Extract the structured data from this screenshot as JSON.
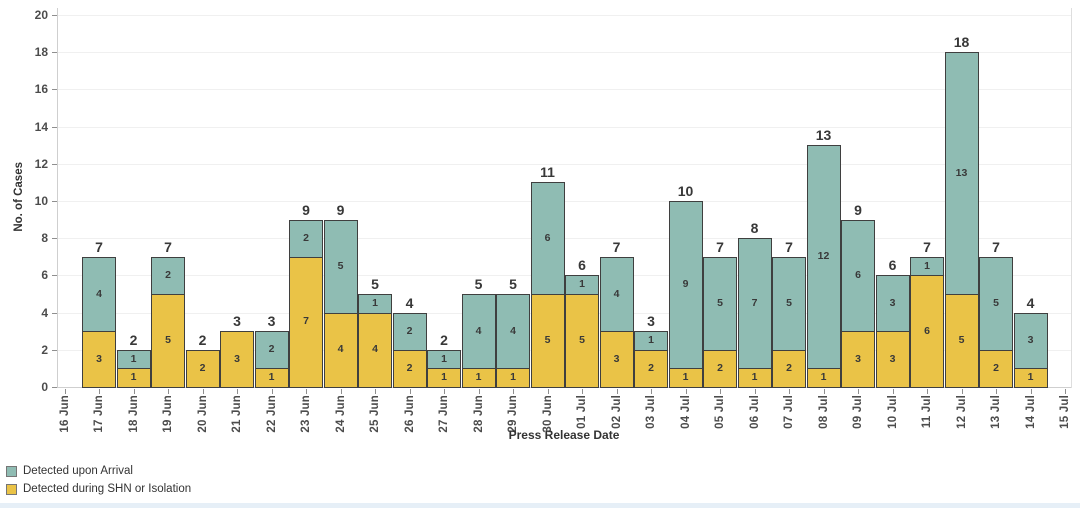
{
  "chart_data": {
    "type": "bar",
    "stacked": true,
    "title": "",
    "xlabel": "Press Release Date",
    "ylabel": "No. of Cases",
    "ylim": [
      0,
      20
    ],
    "ytick_step": 2,
    "grid": true,
    "legend_position": "bottom-left",
    "categories": [
      "16 Jun",
      "17 Jun",
      "18 Jun",
      "19 Jun",
      "20 Jun",
      "21 Jun",
      "22 Jun",
      "23 Jun",
      "24 Jun",
      "25 Jun",
      "26 Jun",
      "27 Jun",
      "28 Jun",
      "29 Jun",
      "30 Jun",
      "01 Jul",
      "02 Jul",
      "03 Jul",
      "04 Jul",
      "05 Jul",
      "06 Jul",
      "07 Jul",
      "08 Jul",
      "09 Jul",
      "10 Jul",
      "11 Jul",
      "12 Jul",
      "13 Jul",
      "14 Jul",
      "15 Jul"
    ],
    "series": [
      {
        "name": "Detected upon Arrival",
        "color": "#8fbcb3",
        "stack_position": "top",
        "values": [
          0,
          4,
          1,
          2,
          0,
          0,
          2,
          2,
          5,
          1,
          2,
          1,
          4,
          4,
          6,
          1,
          4,
          1,
          9,
          5,
          7,
          5,
          12,
          6,
          3,
          1,
          13,
          5,
          3,
          0
        ]
      },
      {
        "name": "Detected during SHN or Isolation",
        "color": "#eac347",
        "stack_position": "bottom",
        "values": [
          0,
          3,
          1,
          5,
          2,
          3,
          1,
          7,
          4,
          4,
          2,
          1,
          1,
          1,
          5,
          5,
          3,
          2,
          1,
          2,
          1,
          2,
          1,
          3,
          3,
          6,
          5,
          2,
          1,
          0
        ]
      }
    ],
    "bar_totals": [
      0,
      7,
      2,
      7,
      2,
      3,
      3,
      9,
      9,
      5,
      4,
      2,
      5,
      5,
      11,
      6,
      7,
      3,
      10,
      7,
      8,
      7,
      13,
      9,
      6,
      7,
      18,
      7,
      4,
      0
    ]
  },
  "colors": {
    "bar_border": "#3f3f3f",
    "gridline": "#f0f0f0",
    "axis_line": "#cfcfcf",
    "tick": "#8f8f8f",
    "axis_text": "#4c4c4c",
    "title_text": "#333333",
    "bottom_strip": "#e6eff7"
  }
}
